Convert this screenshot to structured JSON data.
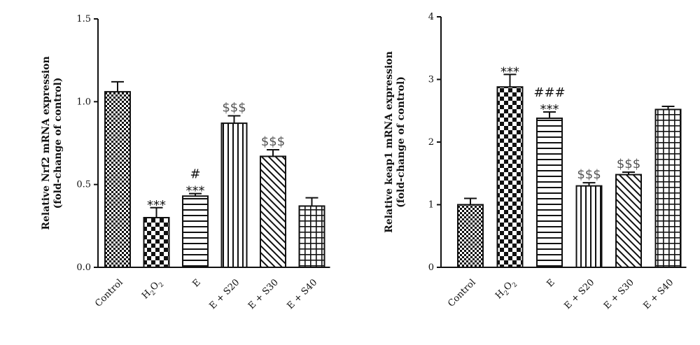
{
  "colors": {
    "ink": "#111111",
    "sig_dollar": "#555555"
  },
  "chart_data": [
    {
      "type": "bar",
      "ylabel": [
        "Relative Nrf2 mRNA expression",
        "(fold-change of control)"
      ],
      "ylim": [
        0,
        1.5
      ],
      "yticks": [
        "0.0",
        "0.5",
        "1.0",
        "1.5"
      ],
      "ytick_values": [
        0,
        0.5,
        1.0,
        1.5
      ],
      "categories": [
        "Control",
        "H2O2",
        "E",
        "E + S20",
        "E + S30",
        "E + S40"
      ],
      "category_labels": [
        {
          "text": "Control"
        },
        {
          "text": "H",
          "sub1": "2",
          "mid": "O",
          "sub2": "2"
        },
        {
          "text": "E"
        },
        {
          "text": "E + S20"
        },
        {
          "text": "E + S30"
        },
        {
          "text": "E + S40"
        }
      ],
      "values": [
        1.06,
        0.3,
        0.43,
        0.87,
        0.67,
        0.37
      ],
      "errors": [
        0.06,
        0.06,
        0.015,
        0.045,
        0.04,
        0.05
      ],
      "patterns": [
        "checker-fine",
        "checker-large",
        "hstripes",
        "vstripes",
        "diag",
        "grid"
      ],
      "annotations": [
        [],
        [
          {
            "text": "***",
            "tone": "dark"
          }
        ],
        [
          {
            "text": "***",
            "tone": "dark"
          },
          {
            "text": "#",
            "tone": "dark"
          }
        ],
        [
          {
            "text": "$$$",
            "tone": "grey"
          }
        ],
        [
          {
            "text": "$$$",
            "tone": "grey"
          }
        ],
        []
      ]
    },
    {
      "type": "bar",
      "ylabel": [
        "Relative keap1 mRNA expression",
        "(fold-change of control)"
      ],
      "ylim": [
        0,
        4
      ],
      "yticks": [
        "0",
        "1",
        "2",
        "3",
        "4"
      ],
      "ytick_values": [
        0,
        1,
        2,
        3,
        4
      ],
      "categories": [
        "Control",
        "H2O2",
        "E",
        "E + S20",
        "E + S30",
        "E + S40"
      ],
      "category_labels": [
        {
          "text": "Control"
        },
        {
          "text": "H",
          "sub1": "2",
          "mid": "O",
          "sub2": "2"
        },
        {
          "text": "E"
        },
        {
          "text": "E + S20"
        },
        {
          "text": "E + S30"
        },
        {
          "text": "E + S40"
        }
      ],
      "values": [
        1.0,
        2.88,
        2.38,
        1.3,
        1.48,
        2.52
      ],
      "errors": [
        0.1,
        0.2,
        0.1,
        0.05,
        0.04,
        0.05
      ],
      "patterns": [
        "checker-fine",
        "checker-large",
        "hstripes",
        "vstripes",
        "diag",
        "grid"
      ],
      "annotations": [
        [],
        [
          {
            "text": "***",
            "tone": "dark"
          }
        ],
        [
          {
            "text": "***",
            "tone": "dark"
          },
          {
            "text": "###",
            "tone": "dark"
          }
        ],
        [
          {
            "text": "$$$",
            "tone": "grey"
          }
        ],
        [
          {
            "text": "$$$",
            "tone": "grey"
          }
        ],
        []
      ]
    }
  ]
}
